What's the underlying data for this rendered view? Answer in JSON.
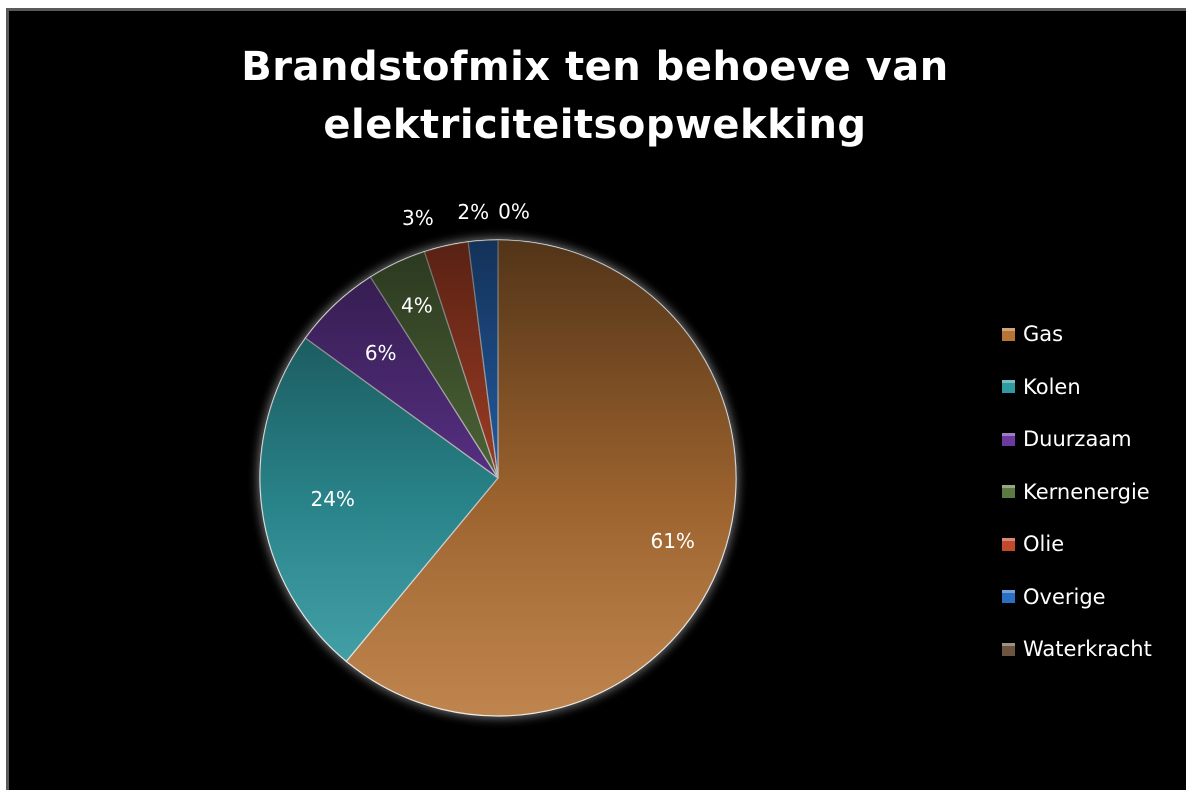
{
  "chart_data": {
    "type": "pie",
    "title": "Brandstofmix ten behoeve van elektriciteitsopwekking",
    "title_lines": [
      "Brandstofmix ten behoeve van",
      "elektriciteitsopwekking"
    ],
    "categories": [
      "Gas",
      "Kolen",
      "Duurzaam",
      "Kernenergie",
      "Olie",
      "Overige",
      "Waterkracht"
    ],
    "values": [
      61,
      24,
      6,
      4,
      3,
      2,
      0
    ],
    "data_labels": [
      "61%",
      "24%",
      "6%",
      "4%",
      "3%",
      "2%",
      "0%"
    ],
    "colors": [
      "#b77436",
      "#2f9aa1",
      "#6a3aa0",
      "#5d7a43",
      "#c24a2c",
      "#2b6fc4",
      "#6b5540"
    ],
    "legend_position": "right",
    "start_angle_deg": 0,
    "direction": "clockwise"
  }
}
